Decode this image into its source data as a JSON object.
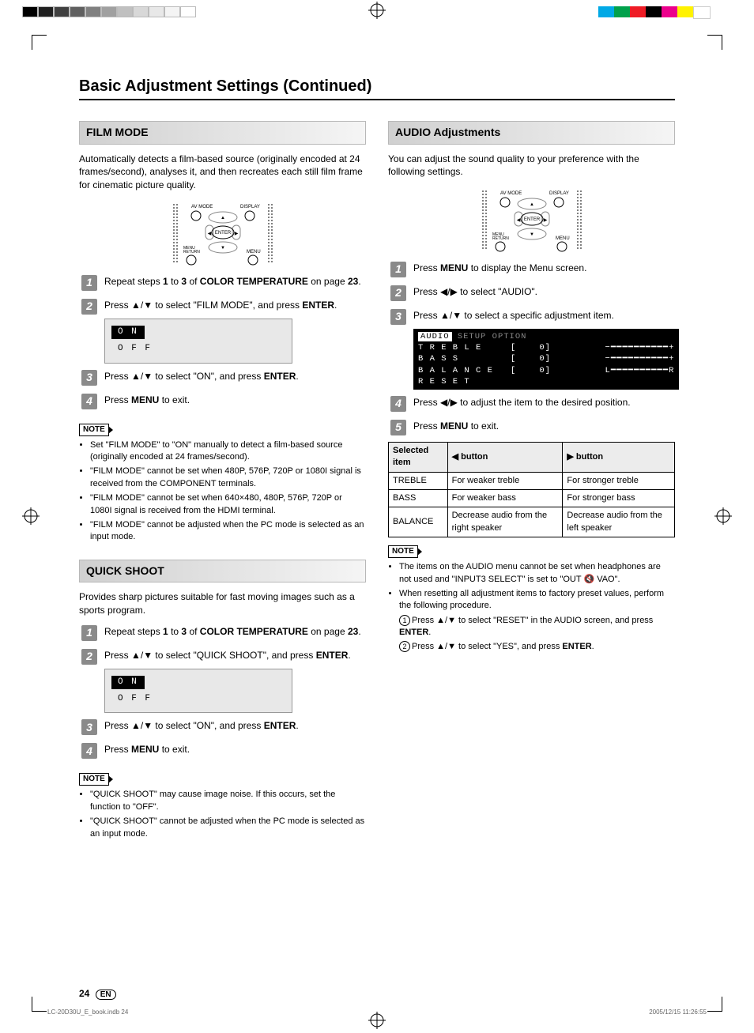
{
  "registration_swatches_gray": [
    "#000000",
    "#202020",
    "#404040",
    "#606060",
    "#808080",
    "#a0a0a0",
    "#c0c0c0",
    "#d8d8d8",
    "#e8e8e8",
    "#f4f4f4",
    "#ffffff"
  ],
  "registration_swatches_gray_border": "#bbbbbb",
  "registration_swatches_color": [
    "#00a9e6",
    "#00a14b",
    "#ee1c25",
    "#000000",
    "#ec008c",
    "#fff200",
    "#ffffff"
  ],
  "page_title": "Basic Adjustment Settings (Continued)",
  "film_mode": {
    "heading": "FILM MODE",
    "intro": "Automatically detects a film-based source (originally encoded at 24 frames/second), analyses it, and then recreates each still film frame for cinematic picture quality.",
    "steps": [
      {
        "n": "1",
        "html": "Repeat steps <b>1</b> to <b>3</b> of <b>COLOR TEMPERATURE</b> on page <b>23</b>."
      },
      {
        "n": "2",
        "html": "Press ▲/▼ to select \"FILM MODE\", and press <b>ENTER</b>.",
        "onoff": true
      },
      {
        "n": "3",
        "html": "Press ▲/▼ to select \"ON\", and press <b>ENTER</b>."
      },
      {
        "n": "4",
        "html": "Press <b>MENU</b> to exit."
      }
    ],
    "onoff": {
      "on": "ON",
      "off": "OFF"
    },
    "notes": [
      "Set \"FILM MODE\" to \"ON\" manually to detect a film-based source (originally encoded at 24 frames/second).",
      "\"FILM MODE\" cannot be set when 480P, 576P, 720P or 1080I signal is received from the COMPONENT terminals.",
      "\"FILM MODE\" cannot be set when 640×480, 480P, 576P, 720P or 1080I signal is received from the HDMI terminal.",
      "\"FILM MODE\" cannot be adjusted when the PC mode is selected as an input mode."
    ]
  },
  "quick_shoot": {
    "heading": "QUICK SHOOT",
    "intro": "Provides sharp pictures suitable for fast moving images such as a sports program.",
    "steps": [
      {
        "n": "1",
        "html": "Repeat steps <b>1</b> to <b>3</b> of <b>COLOR TEMPERATURE</b> on page <b>23</b>."
      },
      {
        "n": "2",
        "html": "Press ▲/▼ to select \"QUICK SHOOT\", and press <b>ENTER</b>.",
        "onoff": true
      },
      {
        "n": "3",
        "html": "Press ▲/▼ to select \"ON\", and press <b>ENTER</b>."
      },
      {
        "n": "4",
        "html": "Press <b>MENU</b> to exit."
      }
    ],
    "notes": [
      "\"QUICK SHOOT\" may cause image noise. If this occurs, set the function to \"OFF\".",
      "\"QUICK SHOOT\" cannot be adjusted when the PC mode is selected as an input mode."
    ]
  },
  "audio": {
    "heading": "AUDIO Adjustments",
    "intro": "You can adjust the sound quality to your preference with the following settings.",
    "steps": [
      {
        "n": "1",
        "html": "Press <b>MENU</b> to display the Menu screen."
      },
      {
        "n": "2",
        "html": "Press ◀/▶ to select \"AUDIO\"."
      },
      {
        "n": "3",
        "html": "Press ▲/▼ to select a specific adjustment item.",
        "osd": true
      },
      {
        "n": "4",
        "html": "Press ◀/▶ to adjust the item to the desired position."
      },
      {
        "n": "5",
        "html": "Press <b>MENU</b> to exit."
      }
    ],
    "osd": {
      "tabs": [
        "AUDIO",
        "SETUP",
        "OPTION"
      ],
      "rows": [
        {
          "label": "TREBLE",
          "value": "0",
          "left": "−",
          "right": "+"
        },
        {
          "label": "BASS",
          "value": "0",
          "left": "−",
          "right": "+"
        },
        {
          "label": "BALANCE",
          "value": "0",
          "left": "L",
          "right": "R"
        },
        {
          "label": "RESET"
        }
      ]
    },
    "table": {
      "headers": [
        "Selected item",
        "◀ button",
        "▶ button"
      ],
      "rows": [
        [
          "TREBLE",
          "For weaker treble",
          "For stronger treble"
        ],
        [
          "BASS",
          "For weaker bass",
          "For stronger bass"
        ],
        [
          "BALANCE",
          "Decrease audio from the right speaker",
          "Decrease audio from the left speaker"
        ]
      ]
    },
    "notes_intro": [
      "The items on the AUDIO menu cannot be set when headphones are not used and \"INPUT3 SELECT\" is set to \"OUT 🔇 VAO\".",
      "When resetting all adjustment items to factory preset values, perform the following procedure."
    ],
    "notes_sub": [
      "Press ▲/▼ to select \"RESET\" in the AUDIO screen, and press <b>ENTER</b>.",
      "Press ▲/▼ to select \"YES\", and press <b>ENTER</b>."
    ]
  },
  "remote_labels": {
    "av": "AV MODE",
    "display": "DISPLAY",
    "enter": "ENTER",
    "mr": "MENU\nRETURN",
    "menu": "MENU"
  },
  "note_label": "NOTE",
  "page_number": "24",
  "page_lang": "EN",
  "print_file": "LC-20D30U_E_book.indb   24",
  "print_timestamp": "2005/12/15   11:26:55"
}
